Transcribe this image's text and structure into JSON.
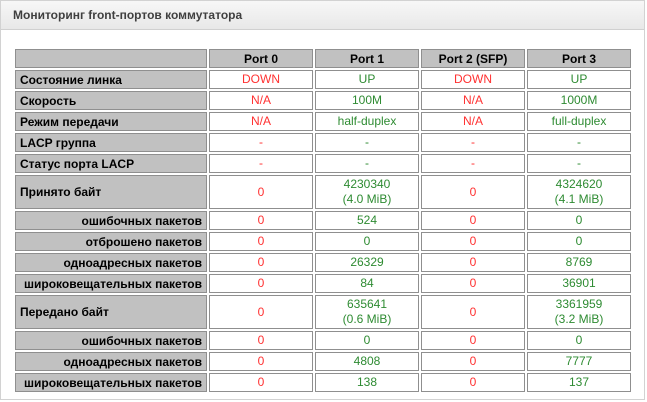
{
  "panel": {
    "title": "Мониторинг front-портов коммутатора"
  },
  "colors": {
    "link_up": "#2e8b32",
    "link_down": "#ff3131",
    "header_bg": "#c1c1c1",
    "cell_border": "#8f8f8f"
  },
  "table": {
    "columns": [
      "",
      "Port 0",
      "Port 1",
      "Port 2 (SFP)",
      "Port 3"
    ],
    "column_status": [
      "down",
      "up",
      "down",
      "up"
    ],
    "rows": [
      {
        "label": "Состояние линка",
        "sub": false,
        "values": [
          "DOWN",
          "UP",
          "DOWN",
          "UP"
        ]
      },
      {
        "label": "Скорость",
        "sub": false,
        "values": [
          "N/A",
          "100M",
          "N/A",
          "1000M"
        ]
      },
      {
        "label": "Режим передачи",
        "sub": false,
        "values": [
          "N/A",
          "half-duplex",
          "N/A",
          "full-duplex"
        ]
      },
      {
        "label": "LACP группа",
        "sub": false,
        "values": [
          "-",
          "-",
          "-",
          "-"
        ]
      },
      {
        "label": "Статус порта LACP",
        "sub": false,
        "values": [
          "-",
          "-",
          "-",
          "-"
        ]
      },
      {
        "label": "Принято байт",
        "sub": false,
        "values": [
          "0",
          "4230340\n(4.0 MiB)",
          "0",
          "4324620\n(4.1 MiB)"
        ]
      },
      {
        "label": "ошибочных пакетов",
        "sub": true,
        "values": [
          "0",
          "524",
          "0",
          "0"
        ]
      },
      {
        "label": "отброшено пакетов",
        "sub": true,
        "values": [
          "0",
          "0",
          "0",
          "0"
        ]
      },
      {
        "label": "одноадресных пакетов",
        "sub": true,
        "values": [
          "0",
          "26329",
          "0",
          "8769"
        ]
      },
      {
        "label": "широковещательных пакетов",
        "sub": true,
        "values": [
          "0",
          "84",
          "0",
          "36901"
        ]
      },
      {
        "label": "Передано байт",
        "sub": false,
        "values": [
          "0",
          "635641\n(0.6 MiB)",
          "0",
          "3361959\n(3.2 MiB)"
        ]
      },
      {
        "label": "ошибочных пакетов",
        "sub": true,
        "values": [
          "0",
          "0",
          "0",
          "0"
        ]
      },
      {
        "label": "одноадресных пакетов",
        "sub": true,
        "values": [
          "0",
          "4808",
          "0",
          "7777"
        ]
      },
      {
        "label": "широковещательных пакетов",
        "sub": true,
        "values": [
          "0",
          "138",
          "0",
          "137"
        ]
      }
    ]
  }
}
